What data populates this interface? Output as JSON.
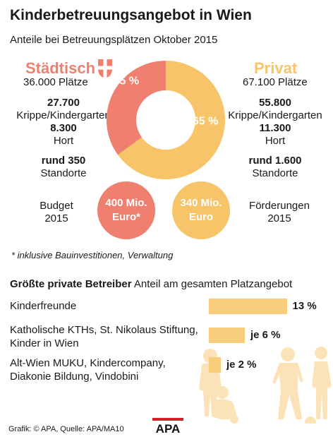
{
  "header": {
    "title": "Kinderbetreuungsangebot in Wien",
    "subtitle": "Anteile bei Betreuungsplätzen Oktober 2015"
  },
  "staedtisch": {
    "label": "Städtisch",
    "plaetze": "36.000 Plätze",
    "krippe_value": "27.700",
    "krippe_label": "Krippe/Kindergarten",
    "hort_value": "8.300",
    "hort_label": "Hort",
    "standorte_value": "rund 350",
    "standorte_label": "Standorte",
    "budget_label_1": "Budget",
    "budget_label_2": "2015",
    "budget_value_1": "400 Mio.",
    "budget_value_2": "Euro*",
    "color": "#ef7f6e"
  },
  "privat": {
    "label": "Privat",
    "plaetze": "67.100 Plätze",
    "krippe_value": "55.800",
    "krippe_label": "Krippe/Kindergarten",
    "hort_value": "11.300",
    "hort_label": "Hort",
    "standorte_value": "rund 1.600",
    "standorte_label": "Standorte",
    "foerderung_label_1": "Förderungen",
    "foerderung_label_2": "2015",
    "foerderung_value_1": "340 Mio.",
    "foerderung_value_2": "Euro",
    "color": "#f8c46a"
  },
  "footnote": "* inklusive Bauinvestitionen, Verwaltung",
  "operators_section": {
    "title_bold": "Größte private Betreiber",
    "title_rest": "Anteil am gesamten Platzangebot"
  },
  "chart_data": [
    {
      "type": "pie",
      "title": "",
      "categories": [
        "Städtisch",
        "Privat"
      ],
      "values": [
        35,
        65
      ],
      "labels": [
        "35 %",
        "65 %"
      ],
      "colors": [
        "#ef7f6e",
        "#f8c46a"
      ]
    },
    {
      "type": "bar",
      "title": "Größte private Betreiber",
      "subtitle": "Anteil am gesamten Platzangebot",
      "categories": [
        "Kinderfreunde",
        "Katholische KTHs, St. Nikolaus Stiftung, Kinder in Wien",
        "Alt-Wien MUKU, Kindercompany, Diakonie Bildung, Vindobini"
      ],
      "label_lines": [
        [
          "Kinderfreunde"
        ],
        [
          "Katholische KTHs, St. Nikolaus Stiftung,",
          "Kinder in Wien"
        ],
        [
          "Alt-Wien MUKU, Kindercompany,",
          "Diakonie Bildung, Vindobini"
        ]
      ],
      "values": [
        13,
        6,
        2
      ],
      "value_labels": [
        "13 %",
        "je 6 %",
        "je 2 %"
      ],
      "color": "#f8cd7b"
    }
  ],
  "source": "Grafik: © APA, Quelle: APA/MA10",
  "logo_text": "APA"
}
